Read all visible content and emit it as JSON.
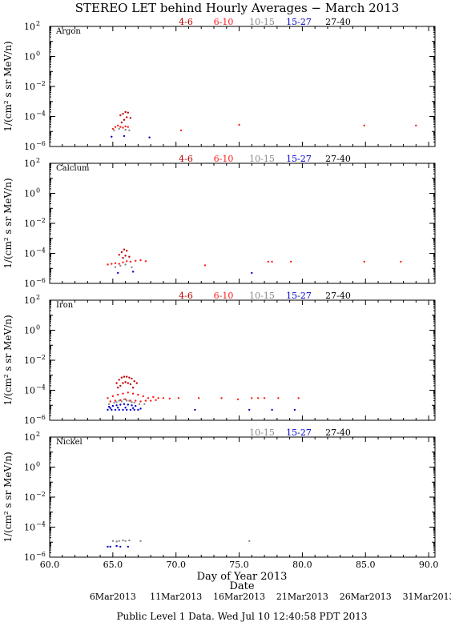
{
  "title": "STEREO LET behind Hourly Averages − March 2013",
  "ylabel": "1/(cm² s sr MeV/n)",
  "xlabel": "Day of Year 2013",
  "date_label": "Date",
  "footer": "Public Level 1 Data. Wed Jul 10 12:40:58 PDT 2013",
  "colors": {
    "4-6": "#c00000",
    "6-10": "#ff1a1a",
    "10-15": "#888888",
    "15-27": "#0000cc",
    "27-40": "#000000",
    "dark": "#660000"
  },
  "chart_data": {
    "type": "scatter",
    "x_axis": {
      "range": [
        60,
        90.5
      ],
      "ticks": [
        60,
        65,
        70,
        75,
        80,
        85,
        90
      ],
      "tick_labels": [
        "60.0",
        "65.0",
        "70.0",
        "75.0",
        "80.0",
        "85.0",
        "90.0"
      ],
      "date_ticks": [
        {
          "doy": 65,
          "label": "6Mar2013"
        },
        {
          "doy": 70,
          "label": "11Mar2013"
        },
        {
          "doy": 75,
          "label": "16Mar2013"
        },
        {
          "doy": 80,
          "label": "21Mar2013"
        },
        {
          "doy": 85,
          "label": "26Mar2013"
        },
        {
          "doy": 90,
          "label": "31Mar2013"
        }
      ]
    },
    "y_axis": {
      "scale": "log",
      "range": [
        1e-06,
        100
      ],
      "ticks": [
        100,
        1,
        0.01,
        0.0001,
        1e-06
      ],
      "tick_labels": [
        {
          "base": "10",
          "exp": "2"
        },
        {
          "base": "10",
          "exp": "0"
        },
        {
          "base": "10",
          "exp": "−2"
        },
        {
          "base": "10",
          "exp": "−4"
        },
        {
          "base": "10",
          "exp": "−6"
        }
      ]
    },
    "panels": [
      {
        "element": "Argon",
        "legend": [
          "4-6",
          "6-10",
          "10-15",
          "15-27",
          "27-40"
        ],
        "series": [
          {
            "name": "4-6",
            "x": [
              65.6,
              65.8,
              66.0,
              66.2,
              66.4,
              65.9,
              66.1,
              65.7
            ],
            "y": [
              0.00012,
              0.00015,
              0.0002,
              0.00018,
              8e-05,
              6e-05,
              9e-05,
              4e-05
            ]
          },
          {
            "name": "6-10",
            "x": [
              65.0,
              65.2,
              65.4,
              65.6,
              65.8,
              66.0,
              66.2,
              70.4,
              75.0,
              84.9,
              89.0
            ],
            "y": [
              1.5e-05,
              2e-05,
              2.5e-05,
              2e-05,
              1.8e-05,
              2.2e-05,
              2e-05,
              1.2e-05,
              2.8e-05,
              2.5e-05,
              2.5e-05
            ]
          },
          {
            "name": "10-15",
            "x": [
              65.1,
              65.5,
              66.0,
              66.3
            ],
            "y": [
              1.2e-05,
              1.5e-05,
              1.3e-05,
              1.2e-05
            ]
          },
          {
            "name": "15-27",
            "x": [
              64.9,
              65.9,
              67.9
            ],
            "y": [
              4.5e-06,
              5e-06,
              4e-06
            ]
          }
        ]
      },
      {
        "element": "Calcium",
        "legend": [
          "4-6",
          "6-10",
          "10-15",
          "15-27",
          "27-40"
        ],
        "series": [
          {
            "name": "4-6",
            "x": [
              65.5,
              65.7,
              65.9,
              66.1,
              66.3,
              65.8,
              66.0
            ],
            "y": [
              8e-05,
              0.00012,
              0.00018,
              0.00015,
              6e-05,
              5e-05,
              7e-05
            ]
          },
          {
            "name": "6-10",
            "x": [
              64.6,
              64.9,
              65.2,
              65.5,
              65.8,
              66.1,
              66.4,
              66.8,
              67.2,
              67.6,
              72.3,
              77.3,
              77.6,
              79.1,
              84.9,
              87.8
            ],
            "y": [
              1.8e-05,
              2e-05,
              2.2e-05,
              2e-05,
              2.5e-05,
              3e-05,
              2.8e-05,
              3.2e-05,
              3.5e-05,
              3e-05,
              1.6e-05,
              2.8e-05,
              2.8e-05,
              2.8e-05,
              2.8e-05,
              2.8e-05
            ]
          },
          {
            "name": "10-15",
            "x": [
              65.2,
              65.6,
              66.0,
              66.5
            ],
            "y": [
              1.2e-05,
              1.5e-05,
              1.8e-05,
              1.2e-05
            ]
          },
          {
            "name": "15-27",
            "x": [
              65.4,
              66.6,
              76.0
            ],
            "y": [
              5e-06,
              6e-06,
              5e-06
            ]
          }
        ]
      },
      {
        "element": "Iron",
        "legend": [
          "4-6",
          "6-10",
          "10-15",
          "15-27",
          "27-40"
        ],
        "series": [
          {
            "name": "4-6",
            "x": [
              65.3,
              65.5,
              65.7,
              65.9,
              66.1,
              66.3,
              66.5,
              66.7,
              66.9,
              65.6,
              65.8,
              66.0,
              66.2,
              66.4,
              65.4,
              66.6
            ],
            "y": [
              0.0003,
              0.0005,
              0.0007,
              0.0008,
              0.0008,
              0.0007,
              0.0006,
              0.0004,
              0.0003,
              0.0002,
              0.0003,
              0.00035,
              0.0003,
              0.00025,
              0.00015,
              0.00015
            ]
          },
          {
            "name": "6-10",
            "x": [
              64.6,
              65.0,
              65.4,
              65.8,
              66.2,
              66.6,
              67.0,
              67.4,
              67.8,
              68.2,
              68.6,
              69.0,
              69.5,
              70.2,
              71.8,
              73.6,
              74.9,
              76.0,
              76.5,
              77.0,
              78.1,
              79.7,
              64.8,
              65.2,
              65.6,
              66.0,
              66.4,
              66.8,
              67.2,
              67.6,
              68.0,
              68.4
            ],
            "y": [
              3e-05,
              4e-05,
              5e-05,
              6e-05,
              7e-05,
              6e-05,
              5e-05,
              4e-05,
              3e-05,
              3.5e-05,
              3e-05,
              3e-05,
              2.8e-05,
              3e-05,
              3e-05,
              3e-05,
              2.5e-05,
              3e-05,
              3e-05,
              3e-05,
              3e-05,
              3e-05,
              1.8e-05,
              2e-05,
              2.2e-05,
              2.5e-05,
              2e-05,
              2e-05,
              1.8e-05,
              2e-05,
              2e-05,
              2.2e-05
            ]
          },
          {
            "name": "10-15",
            "x": [
              64.7,
              65.1,
              65.5,
              65.9,
              66.3,
              66.7,
              67.1,
              67.5,
              65.3,
              65.7,
              66.1,
              66.5
            ],
            "y": [
              1.2e-05,
              1.5e-05,
              2e-05,
              2.5e-05,
              2e-05,
              1.5e-05,
              1.2e-05,
              1.2e-05,
              1.6e-05,
              1.8e-05,
              2e-05,
              1.6e-05
            ]
          },
          {
            "name": "15-27",
            "x": [
              64.6,
              64.9,
              65.2,
              65.5,
              65.8,
              66.1,
              66.4,
              66.7,
              67.0,
              64.7,
              65.0,
              65.3,
              65.6,
              65.9,
              66.2,
              66.5,
              66.8,
              64.8,
              65.4,
              66.0,
              66.6,
              67.2,
              71.5,
              75.8,
              77.6,
              79.4
            ],
            "y": [
              5e-06,
              5e-06,
              5e-06,
              5e-06,
              5e-06,
              5e-06,
              5e-06,
              5e-06,
              5e-06,
              8e-06,
              9e-06,
              1e-05,
              1.1e-05,
              1.2e-05,
              1.1e-05,
              1e-05,
              9e-06,
              6.5e-06,
              7e-06,
              7e-06,
              6.5e-06,
              6e-06,
              5e-06,
              5e-06,
              5e-06,
              5e-06
            ]
          }
        ]
      },
      {
        "element": "Nickel",
        "legend": [
          "10-15",
          "15-27",
          "27-40"
        ],
        "series": [
          {
            "name": "10-15",
            "x": [
              65.0,
              65.3,
              65.5,
              65.8,
              66.0,
              66.3,
              67.2,
              75.8
            ],
            "y": [
              1.2e-05,
              1.1e-05,
              1.2e-05,
              1.3e-05,
              1.2e-05,
              1.3e-05,
              1.2e-05,
              1.2e-05
            ]
          },
          {
            "name": "15-27",
            "x": [
              64.6,
              64.8,
              65.3,
              65.6,
              66.2
            ],
            "y": [
              5e-06,
              5e-06,
              5.5e-06,
              5e-06,
              5e-06
            ]
          }
        ]
      }
    ]
  }
}
